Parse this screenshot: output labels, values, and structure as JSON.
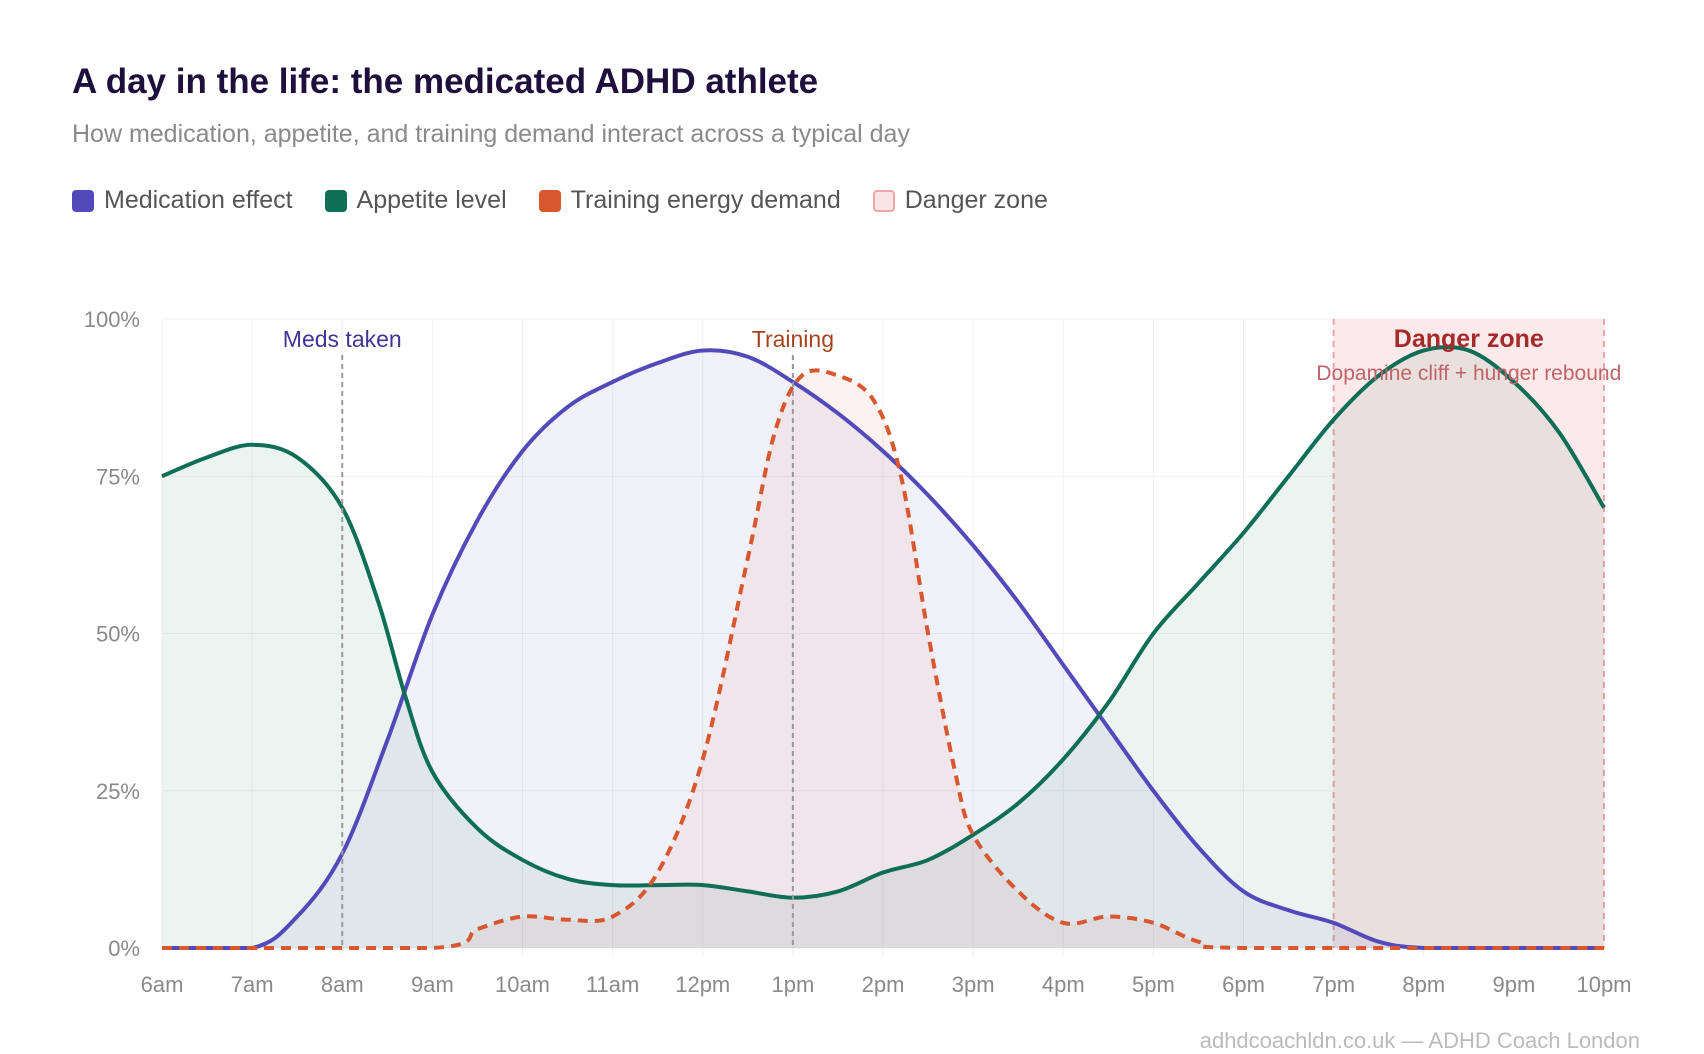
{
  "chart_data": {
    "type": "area",
    "title": "A day in the life: the medicated ADHD athlete",
    "subtitle": "How medication, appetite, and training demand interact across a typical day",
    "x_tick_labels": [
      "6am",
      "7am",
      "8am",
      "9am",
      "10am",
      "11am",
      "12pm",
      "1pm",
      "2pm",
      "3pm",
      "4pm",
      "5pm",
      "6pm",
      "7pm",
      "8pm",
      "9pm",
      "10pm"
    ],
    "x_range_hours": [
      6,
      22
    ],
    "y_tick_labels": [
      "0%",
      "25%",
      "50%",
      "75%",
      "100%"
    ],
    "ylim": [
      0,
      100
    ],
    "grid": true,
    "legend_position": "top-left",
    "series": [
      {
        "name": "Medication effect",
        "color": "#524abb",
        "style": "solid",
        "x": [
          6,
          7,
          7.5,
          8,
          8.5,
          9,
          9.5,
          10,
          10.5,
          11,
          11.5,
          12,
          12.5,
          13,
          13.5,
          14,
          14.5,
          15,
          15.5,
          16,
          16.5,
          17,
          17.5,
          18,
          18.5,
          19,
          19.5,
          20,
          21,
          22
        ],
        "y": [
          0,
          0,
          5,
          15,
          33,
          53,
          68,
          79,
          86,
          90,
          93,
          95,
          94,
          90,
          85,
          79,
          72,
          64,
          55,
          45,
          35,
          25,
          16,
          9,
          6,
          4,
          1,
          0,
          0,
          0
        ]
      },
      {
        "name": "Appetite level",
        "color": "#0f6e55",
        "style": "solid",
        "x": [
          6,
          6.5,
          7,
          7.5,
          8,
          8.4,
          8.7,
          9,
          9.5,
          10,
          10.5,
          11,
          11.5,
          12,
          12.5,
          13,
          13.5,
          14,
          14.5,
          15,
          15.5,
          16,
          16.5,
          17,
          17.5,
          18,
          18.5,
          19,
          19.5,
          20,
          20.5,
          21,
          21.5,
          22
        ],
        "y": [
          75,
          78,
          80,
          78,
          70,
          55,
          40,
          28,
          19,
          14,
          11,
          10,
          10,
          10,
          9,
          8,
          9,
          12,
          14,
          18,
          23,
          30,
          39,
          50,
          58,
          66,
          75,
          84,
          91,
          95,
          95,
          90,
          82,
          70
        ]
      },
      {
        "name": "Training energy demand",
        "color": "#d9572e",
        "style": "dashed",
        "x": [
          6,
          9,
          9.5,
          10,
          10.5,
          11,
          11.5,
          12,
          12.5,
          12.8,
          13.1,
          13.5,
          13.9,
          14.2,
          14.5,
          14.8,
          15,
          15.5,
          16,
          16.5,
          17,
          17.5,
          18,
          22
        ],
        "y": [
          0,
          0,
          3,
          5,
          4.5,
          5,
          12,
          30,
          62,
          82,
          91,
          91,
          87,
          75,
          50,
          28,
          18,
          9,
          4,
          5,
          4,
          1,
          0,
          0
        ]
      }
    ],
    "annotations": [
      {
        "label": "Meds taken",
        "x": 8,
        "color": "#3f3596"
      },
      {
        "label": "Training",
        "x": 13,
        "color": "#a8431f"
      }
    ],
    "danger_zone": {
      "label": "Danger zone",
      "sublabel": "Dopamine cliff + hunger rebound",
      "x_start": 19,
      "x_end": 22,
      "color": "#fbe6e6",
      "text_color": "#a52a2a",
      "sub_color": "#c0646a"
    },
    "legend": [
      {
        "label": "Medication effect",
        "color": "#524abb"
      },
      {
        "label": "Appetite level",
        "color": "#0f6e55"
      },
      {
        "label": "Training energy demand",
        "color": "#d9572e"
      },
      {
        "label": "Danger zone",
        "color": "#fbe4e4"
      }
    ]
  },
  "footer": "adhdcoachldn.co.uk — ADHD Coach London"
}
